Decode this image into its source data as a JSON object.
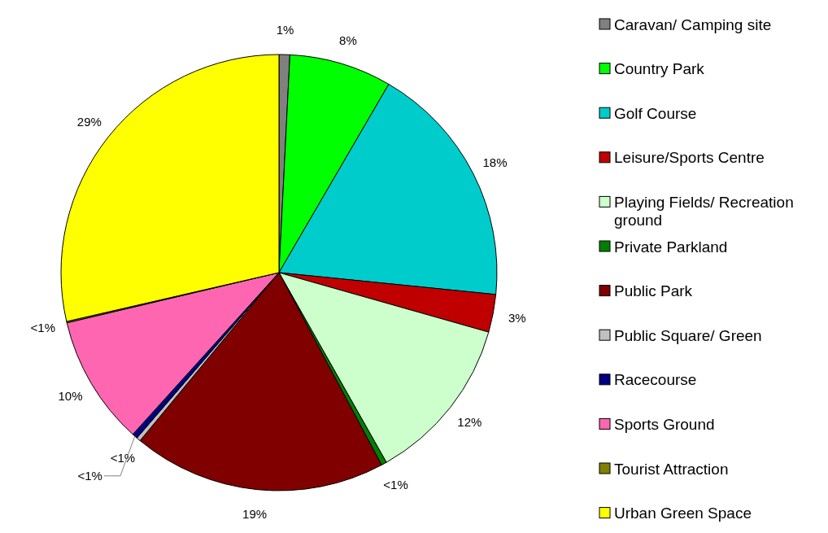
{
  "chart_data": {
    "type": "pie",
    "categories": [
      "Caravan/ Camping site",
      "Country Park",
      "Golf Course",
      "Leisure/Sports Centre",
      "Playing Fields/ Recreation ground",
      "Private Parkland",
      "Public Park",
      "Public Square/ Green",
      "Racecourse",
      "Sports Ground",
      "Tourist Attraction",
      "Urban Green Space"
    ],
    "values": [
      0.8,
      7.6,
      18.2,
      2.8,
      12.4,
      0.4,
      18.8,
      0.3,
      0.4,
      9.6,
      0.1,
      28.6
    ],
    "colors": [
      "#808080",
      "#00ff00",
      "#00cccc",
      "#c00000",
      "#ccffcc",
      "#008000",
      "#800000",
      "#c0c0c0",
      "#000080",
      "#ff66b2",
      "#808000",
      "#ffff00"
    ],
    "value_labels": [
      "1%",
      "8%",
      "18%",
      "3%",
      "12%",
      "<1%",
      "19%",
      "<1%",
      "<1%",
      "10%",
      "<1%",
      "29%"
    ],
    "legend": "right"
  }
}
